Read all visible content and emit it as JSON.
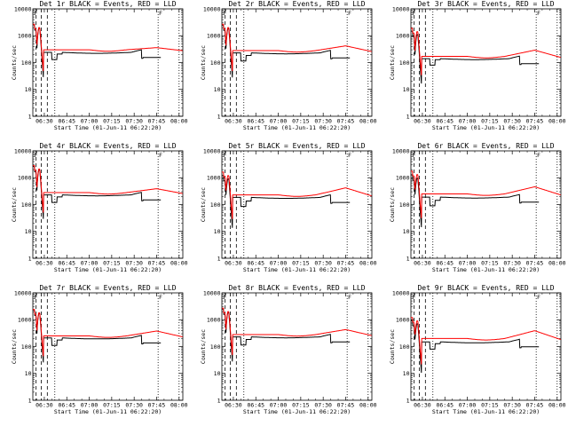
{
  "chart_data": {
    "type": "line",
    "layout": "3x3 grid",
    "panels": [
      {
        "title": "Det 1r BLACK = Events, RED = LLD",
        "rpeak": 2000,
        "rplateau": 300,
        "rhump": 360,
        "kpeak": 1900,
        "kplateau": 240,
        "kdip": 130
      },
      {
        "title": "Det 2r BLACK = Events, RED = LLD",
        "rpeak": 2000,
        "rplateau": 280,
        "rhump": 420,
        "kpeak": 1850,
        "kplateau": 230,
        "kdip": 115
      },
      {
        "title": "Det 3r BLACK = Events, RED = LLD",
        "rpeak": 1400,
        "rplateau": 170,
        "rhump": 290,
        "kpeak": 1100,
        "kplateau": 140,
        "kdip": 80
      },
      {
        "title": "Det 4r BLACK = Events, RED = LLD",
        "rpeak": 2100,
        "rplateau": 280,
        "rhump": 390,
        "kpeak": 1950,
        "kplateau": 230,
        "kdip": 120
      },
      {
        "title": "Det 5r BLACK = Events, RED = LLD",
        "rpeak": 1200,
        "rplateau": 230,
        "rhump": 420,
        "kpeak": 900,
        "kplateau": 185,
        "kdip": 85
      },
      {
        "title": "Det 6r BLACK = Events, RED = LLD",
        "rpeak": 1300,
        "rplateau": 250,
        "rhump": 460,
        "kpeak": 950,
        "kplateau": 190,
        "kdip": 90
      },
      {
        "title": "Det 7r BLACK = Events, RED = LLD",
        "rpeak": 1800,
        "rplateau": 250,
        "rhump": 380,
        "kpeak": 1700,
        "kplateau": 210,
        "kdip": 110
      },
      {
        "title": "Det 8r BLACK = Events, RED = LLD",
        "rpeak": 2000,
        "rplateau": 280,
        "rhump": 430,
        "kpeak": 1850,
        "kplateau": 230,
        "kdip": 115
      },
      {
        "title": "Det 9r BLACK = Events, RED = LLD",
        "rpeak": 900,
        "rplateau": 200,
        "rhump": 390,
        "kpeak": 700,
        "kplateau": 150,
        "kdip": 80
      }
    ],
    "xlabel": "Start Time (01-Jun-11 06:22:20)",
    "ylabel": "Counts/sec",
    "xticks": [
      "06:30",
      "06:45",
      "07:00",
      "07:15",
      "07:30",
      "07:45",
      "08:00"
    ],
    "xtick_minutes": [
      30,
      45,
      60,
      75,
      90,
      105,
      120
    ],
    "xlim_minutes": [
      22.33,
      122.5
    ],
    "yscale": "log",
    "ylim": [
      1,
      10000
    ],
    "yticks": [
      "1",
      "10",
      "100",
      "1000",
      "10000"
    ],
    "ytick_values": [
      1,
      10,
      100,
      1000,
      10000
    ],
    "vlines_dashed_minutes": [
      24.5,
      28.0,
      32.0
    ],
    "vlines_dotted_minutes": [
      37.0,
      106.0,
      120.0
    ],
    "markers": [
      "F",
      "F"
    ],
    "series": [
      {
        "name": "BLACK = Events",
        "color": "#000000"
      },
      {
        "name": "RED = LLD",
        "color": "#ff0000"
      }
    ]
  }
}
